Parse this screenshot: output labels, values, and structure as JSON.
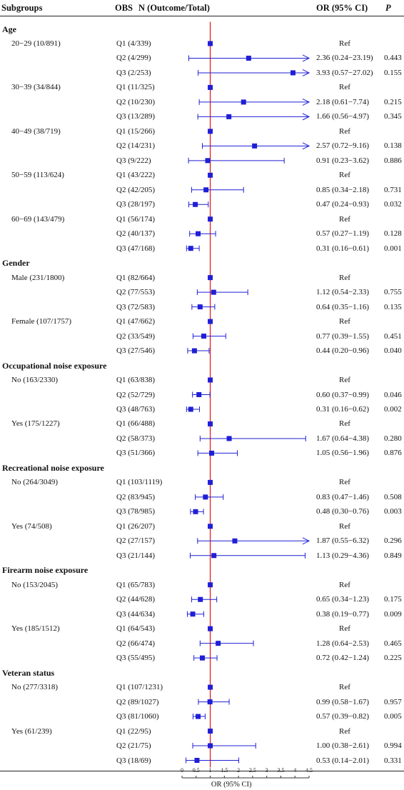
{
  "header": {
    "subgroups": "Subgroups",
    "obs": "OBS",
    "n": "N (Outcome/Total)",
    "or": "OR (95% CI)",
    "p": "P"
  },
  "chart_data": {
    "type": "forest",
    "xlabel": "OR (95% CI)",
    "xlim": [
      0,
      4.5
    ],
    "reference_line": 1,
    "ticks": [
      "0",
      "0.5",
      "1",
      "1.5",
      "2",
      "2.5",
      "3",
      "3.5",
      "4",
      "4.5"
    ],
    "marker_color": "#1f1fd6",
    "reference_color": "#e02020",
    "rows": [
      {
        "kind": "section",
        "label": "Age"
      },
      {
        "kind": "item",
        "subgroup": "20−29 (10/891)",
        "obs": "Q1 (4/339)",
        "or": "Ref",
        "p": "",
        "est": 1
      },
      {
        "kind": "item",
        "subgroup": "",
        "obs": "Q2 (4/299)",
        "or": "2.36 (0.24−23.19)",
        "p": "0.443",
        "est": 2.36,
        "lo": 0.24,
        "hi": 23.19
      },
      {
        "kind": "item",
        "subgroup": "",
        "obs": "Q3 (2/253)",
        "or": "3.93 (0.57−27.02)",
        "p": "0.155",
        "est": 3.93,
        "lo": 0.57,
        "hi": 27.02
      },
      {
        "kind": "item",
        "subgroup": "30−39 (34/844)",
        "obs": "Q1 (11/325)",
        "or": "Ref",
        "p": "",
        "est": 1
      },
      {
        "kind": "item",
        "subgroup": "",
        "obs": "Q2 (10/230)",
        "or": "2.18 (0.61−7.74)",
        "p": "0.215",
        "est": 2.18,
        "lo": 0.61,
        "hi": 7.74
      },
      {
        "kind": "item",
        "subgroup": "",
        "obs": "Q3 (13/289)",
        "or": "1.66 (0.56−4.97)",
        "p": "0.345",
        "est": 1.66,
        "lo": 0.56,
        "hi": 4.97
      },
      {
        "kind": "item",
        "subgroup": "40−49 (38/719)",
        "obs": "Q1 (15/266)",
        "or": "Ref",
        "p": "",
        "est": 1
      },
      {
        "kind": "item",
        "subgroup": "",
        "obs": "Q2 (14/231)",
        "or": "2.57 (0.72−9.16)",
        "p": "0.138",
        "est": 2.57,
        "lo": 0.72,
        "hi": 9.16
      },
      {
        "kind": "item",
        "subgroup": "",
        "obs": "Q3 (9/222)",
        "or": "0.91 (0.23−3.62)",
        "p": "0.886",
        "est": 0.91,
        "lo": 0.23,
        "hi": 3.62
      },
      {
        "kind": "item",
        "subgroup": "50−59 (113/624)",
        "obs": "Q1 (43/222)",
        "or": "Ref",
        "p": "",
        "est": 1
      },
      {
        "kind": "item",
        "subgroup": "",
        "obs": "Q2 (42/205)",
        "or": "0.85 (0.34−2.18)",
        "p": "0.731",
        "est": 0.85,
        "lo": 0.34,
        "hi": 2.18
      },
      {
        "kind": "item",
        "subgroup": "",
        "obs": "Q3 (28/197)",
        "or": "0.47 (0.24−0.93)",
        "p": "0.032",
        "est": 0.47,
        "lo": 0.24,
        "hi": 0.93
      },
      {
        "kind": "item",
        "subgroup": "60−69 (143/479)",
        "obs": "Q1 (56/174)",
        "or": "Ref",
        "p": "",
        "est": 1
      },
      {
        "kind": "item",
        "subgroup": "",
        "obs": "Q2 (40/137)",
        "or": "0.57 (0.27−1.19)",
        "p": "0.128",
        "est": 0.57,
        "lo": 0.27,
        "hi": 1.19
      },
      {
        "kind": "item",
        "subgroup": "",
        "obs": "Q3 (47/168)",
        "or": "0.31 (0.16−0.61)",
        "p": "0.001",
        "est": 0.31,
        "lo": 0.16,
        "hi": 0.61
      },
      {
        "kind": "section",
        "label": "Gender"
      },
      {
        "kind": "item",
        "subgroup": "Male (231/1800)",
        "obs": "Q1 (82/664)",
        "or": "Ref",
        "p": "",
        "est": 1
      },
      {
        "kind": "item",
        "subgroup": "",
        "obs": "Q2 (77/553)",
        "or": "1.12 (0.54−2.33)",
        "p": "0.755",
        "est": 1.12,
        "lo": 0.54,
        "hi": 2.33
      },
      {
        "kind": "item",
        "subgroup": "",
        "obs": "Q3 (72/583)",
        "or": "0.64 (0.35−1.16)",
        "p": "0.135",
        "est": 0.64,
        "lo": 0.35,
        "hi": 1.16
      },
      {
        "kind": "item",
        "subgroup": "Female (107/1757)",
        "obs": "Q1 (47/662)",
        "or": "Ref",
        "p": "",
        "est": 1
      },
      {
        "kind": "item",
        "subgroup": "",
        "obs": "Q2 (33/549)",
        "or": "0.77 (0.39−1.55)",
        "p": "0.451",
        "est": 0.77,
        "lo": 0.39,
        "hi": 1.55
      },
      {
        "kind": "item",
        "subgroup": "",
        "obs": "Q3 (27/546)",
        "or": "0.44 (0.20−0.96)",
        "p": "0.040",
        "est": 0.44,
        "lo": 0.2,
        "hi": 0.96
      },
      {
        "kind": "section",
        "label": "Occupational noise exposure"
      },
      {
        "kind": "item",
        "subgroup": "No (163/2330)",
        "obs": "Q1 (63/838)",
        "or": "Ref",
        "p": "",
        "est": 1
      },
      {
        "kind": "item",
        "subgroup": "",
        "obs": "Q2 (52/729)",
        "or": "0.60 (0.37−0.99)",
        "p": "0.046",
        "est": 0.6,
        "lo": 0.37,
        "hi": 0.99
      },
      {
        "kind": "item",
        "subgroup": "",
        "obs": "Q3 (48/763)",
        "or": "0.31 (0.16−0.62)",
        "p": "0.002",
        "est": 0.31,
        "lo": 0.16,
        "hi": 0.62
      },
      {
        "kind": "item",
        "subgroup": "Yes (175/1227)",
        "obs": "Q1 (66/488)",
        "or": "Ref",
        "p": "",
        "est": 1
      },
      {
        "kind": "item",
        "subgroup": "",
        "obs": "Q2 (58/373)",
        "or": "1.67 (0.64−4.38)",
        "p": "0.280",
        "est": 1.67,
        "lo": 0.64,
        "hi": 4.38
      },
      {
        "kind": "item",
        "subgroup": "",
        "obs": "Q3 (51/366)",
        "or": "1.05 (0.56−1.96)",
        "p": "0.876",
        "est": 1.05,
        "lo": 0.56,
        "hi": 1.96
      },
      {
        "kind": "section",
        "label": "Recreational noise exposure"
      },
      {
        "kind": "item",
        "subgroup": "No (264/3049)",
        "obs": "Q1 (103/1119)",
        "or": "Ref",
        "p": "",
        "est": 1
      },
      {
        "kind": "item",
        "subgroup": "",
        "obs": "Q2 (83/945)",
        "or": "0.83 (0.47−1.46)",
        "p": "0.508",
        "est": 0.83,
        "lo": 0.47,
        "hi": 1.46
      },
      {
        "kind": "item",
        "subgroup": "",
        "obs": "Q3 (78/985)",
        "or": "0.48 (0.30−0.76)",
        "p": "0.003",
        "est": 0.48,
        "lo": 0.3,
        "hi": 0.76
      },
      {
        "kind": "item",
        "subgroup": "Yes (74/508)",
        "obs": "Q1 (26/207)",
        "or": "Ref",
        "p": "",
        "est": 1
      },
      {
        "kind": "item",
        "subgroup": "",
        "obs": "Q2 (27/157)",
        "or": "1.87 (0.55−6.32)",
        "p": "0.296",
        "est": 1.87,
        "lo": 0.55,
        "hi": 6.32
      },
      {
        "kind": "item",
        "subgroup": "",
        "obs": "Q3 (21/144)",
        "or": "1.13 (0.29−4.36)",
        "p": "0.849",
        "est": 1.13,
        "lo": 0.29,
        "hi": 4.36
      },
      {
        "kind": "section",
        "label": "Firearm noise exposure"
      },
      {
        "kind": "item",
        "subgroup": "No (153/2045)",
        "obs": "Q1 (65/783)",
        "or": "Ref",
        "p": "",
        "est": 1
      },
      {
        "kind": "item",
        "subgroup": "",
        "obs": "Q2 (44/628)",
        "or": "0.65 (0.34−1.23)",
        "p": "0.175",
        "est": 0.65,
        "lo": 0.34,
        "hi": 1.23
      },
      {
        "kind": "item",
        "subgroup": "",
        "obs": "Q3 (44/634)",
        "or": "0.38 (0.19−0.77)",
        "p": "0.009",
        "est": 0.38,
        "lo": 0.19,
        "hi": 0.77
      },
      {
        "kind": "item",
        "subgroup": "Yes (185/1512)",
        "obs": "Q1 (64/543)",
        "or": "Ref",
        "p": "",
        "est": 1
      },
      {
        "kind": "item",
        "subgroup": "",
        "obs": "Q2 (66/474)",
        "or": "1.28 (0.64−2.53)",
        "p": "0.465",
        "est": 1.28,
        "lo": 0.64,
        "hi": 2.53
      },
      {
        "kind": "item",
        "subgroup": "",
        "obs": "Q3 (55/495)",
        "or": "0.72 (0.42−1.24)",
        "p": "0.225",
        "est": 0.72,
        "lo": 0.42,
        "hi": 1.24
      },
      {
        "kind": "section",
        "label": "Veteran status"
      },
      {
        "kind": "item",
        "subgroup": "No (277/3318)",
        "obs": "Q1 (107/1231)",
        "or": "Ref",
        "p": "",
        "est": 1
      },
      {
        "kind": "item",
        "subgroup": "",
        "obs": "Q2 (89/1027)",
        "or": "0.99 (0.58−1.67)",
        "p": "0.957",
        "est": 0.99,
        "lo": 0.58,
        "hi": 1.67
      },
      {
        "kind": "item",
        "subgroup": "",
        "obs": "Q3 (81/1060)",
        "or": "0.57 (0.39−0.82)",
        "p": "0.005",
        "est": 0.57,
        "lo": 0.39,
        "hi": 0.82
      },
      {
        "kind": "item",
        "subgroup": "Yes (61/239)",
        "obs": "Q1 (22/95)",
        "or": "Ref",
        "p": "",
        "est": 1
      },
      {
        "kind": "item",
        "subgroup": "",
        "obs": "Q2 (21/75)",
        "or": "1.00 (0.38−2.61)",
        "p": "0.994",
        "est": 1.0,
        "lo": 0.38,
        "hi": 2.61
      },
      {
        "kind": "item",
        "subgroup": "",
        "obs": "Q3 (18/69)",
        "or": "0.53 (0.14−2.01)",
        "p": "0.331",
        "est": 0.53,
        "lo": 0.14,
        "hi": 2.01
      }
    ]
  }
}
